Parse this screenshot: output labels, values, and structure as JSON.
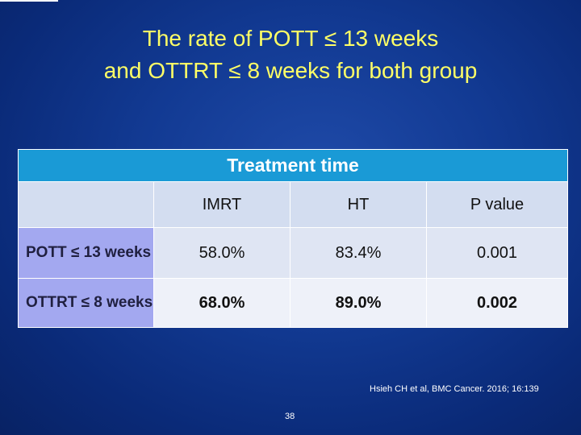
{
  "slide": {
    "title_line1": "The rate of POTT ≤ 13 weeks",
    "title_line2": "and OTTRT ≤ 8 weeks for both group",
    "citation": "Hsieh CH et al, BMC Cancer. 2016; 16:139",
    "page_number": "38"
  },
  "table": {
    "caption": "Treatment time",
    "columns": [
      "",
      "IMRT",
      "HT",
      "P value"
    ],
    "rows": [
      {
        "label": "POTT ≤ 13 weeks",
        "imrt": "58.0%",
        "ht": "83.4%",
        "p": "0.001"
      },
      {
        "label": "OTTRT ≤ 8 weeks",
        "imrt": "68.0%",
        "ht": "89.0%",
        "p": "0.002"
      }
    ]
  },
  "colors": {
    "background": "#123a93",
    "title": "#ffff66",
    "table_header": "#1a9ad6",
    "row_label": "#a3a8f0"
  }
}
